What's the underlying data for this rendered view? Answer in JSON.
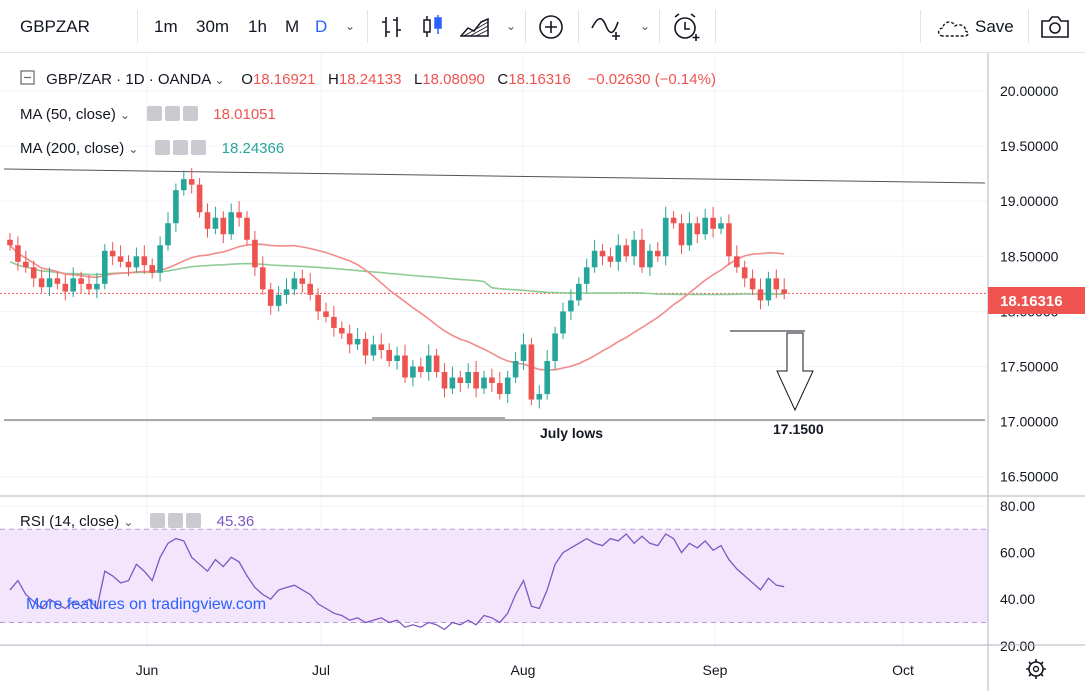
{
  "toolbar": {
    "symbol": "GBPZAR",
    "intervals": [
      "1m",
      "30m",
      "1h",
      "M",
      "D"
    ],
    "active_interval": "D",
    "save_label": "Save",
    "icons": [
      "bar-chart-icon",
      "candles-icon",
      "area-chart-icon",
      "add-compare-icon",
      "indicator-icon",
      "alert-icon",
      "snapshot-icon"
    ]
  },
  "legend": {
    "symbol_line": "GBP/ZAR · 1D · OANDA",
    "open_label": "O",
    "open": "18.16921",
    "high_label": "H",
    "high": "18.24133",
    "low_label": "L",
    "low": "18.08090",
    "close_label": "C",
    "close": "18.16316",
    "change": "−0.02630 (−0.14%)",
    "ma50_label": "MA (50, close)",
    "ma50_value": "18.01051",
    "ma200_label": "MA (200, close)",
    "ma200_value": "18.24366",
    "rsi_label": "RSI (14, close)",
    "rsi_value": "45.36"
  },
  "annotations": {
    "july_lows": "July lows",
    "target": "17.1500",
    "watermark": "More features on tradingview.com"
  },
  "price_label": "18.16316",
  "colors": {
    "up": "#26a69a",
    "down": "#ef5350",
    "ma50": "#f28b8b",
    "ma200": "#8fcc96",
    "rsi": "#7e57c2",
    "rsi_band": "#f3e5fc",
    "accent": "#2962ff"
  },
  "chart_data": [
    {
      "type": "candlestick",
      "title": "GBP/ZAR · 1D · OANDA",
      "x_ticks": [
        "Jun",
        "Jul",
        "Aug",
        "Sep",
        "Oct"
      ],
      "y_ticks": [
        "16.50000",
        "17.00000",
        "17.50000",
        "18.00000",
        "18.50000",
        "19.00000",
        "19.50000",
        "20.00000"
      ],
      "ylim": [
        16.5,
        20.3
      ],
      "closes": [
        18.6,
        18.45,
        18.4,
        18.3,
        18.22,
        18.3,
        18.25,
        18.18,
        18.3,
        18.25,
        18.2,
        18.25,
        18.55,
        18.5,
        18.45,
        18.4,
        18.5,
        18.42,
        18.35,
        18.6,
        18.8,
        19.1,
        19.2,
        19.15,
        18.9,
        18.75,
        18.85,
        18.7,
        18.9,
        18.85,
        18.65,
        18.4,
        18.2,
        18.05,
        18.15,
        18.2,
        18.3,
        18.25,
        18.15,
        18.0,
        17.95,
        17.85,
        17.8,
        17.7,
        17.75,
        17.6,
        17.7,
        17.65,
        17.55,
        17.6,
        17.4,
        17.5,
        17.45,
        17.6,
        17.45,
        17.3,
        17.4,
        17.35,
        17.45,
        17.3,
        17.4,
        17.35,
        17.25,
        17.4,
        17.55,
        17.7,
        17.2,
        17.25,
        17.55,
        17.8,
        18.0,
        18.1,
        18.25,
        18.4,
        18.55,
        18.5,
        18.45,
        18.6,
        18.5,
        18.65,
        18.4,
        18.55,
        18.5,
        18.85,
        18.8,
        18.6,
        18.8,
        18.7,
        18.85,
        18.75,
        18.8,
        18.5,
        18.4,
        18.3,
        18.2,
        18.1,
        18.3,
        18.2,
        18.16
      ],
      "series": [
        {
          "name": "MA (50, close)",
          "last": 18.01051
        },
        {
          "name": "MA (200, close)",
          "last": 18.24366
        }
      ],
      "annotations": [
        {
          "text": "July lows",
          "y": 17.15
        },
        {
          "text": "17.1500",
          "y": 17.15
        }
      ]
    },
    {
      "type": "line",
      "title": "RSI (14, close)",
      "y_ticks": [
        "20.00",
        "40.00",
        "60.00",
        "80.00"
      ],
      "ylim": [
        20,
        80
      ],
      "band": [
        30,
        70
      ],
      "values": [
        44,
        48,
        42,
        39,
        36,
        40,
        38,
        36,
        39,
        37,
        40,
        36,
        52,
        50,
        47,
        48,
        55,
        52,
        48,
        58,
        64,
        66,
        65,
        58,
        55,
        52,
        57,
        54,
        58,
        56,
        50,
        45,
        42,
        40,
        44,
        45,
        46,
        44,
        42,
        38,
        36,
        34,
        33,
        31,
        32,
        30,
        31,
        32,
        30,
        31,
        28,
        29,
        28,
        30,
        29,
        27,
        30,
        29,
        31,
        29,
        33,
        32,
        30,
        34,
        42,
        48,
        37,
        36,
        44,
        55,
        60,
        62,
        64,
        66,
        64,
        63,
        66,
        65,
        68,
        64,
        67,
        64,
        63,
        68,
        66,
        60,
        64,
        62,
        65,
        61,
        63,
        57,
        53,
        50,
        47,
        44,
        49,
        46,
        45.36
      ]
    }
  ]
}
